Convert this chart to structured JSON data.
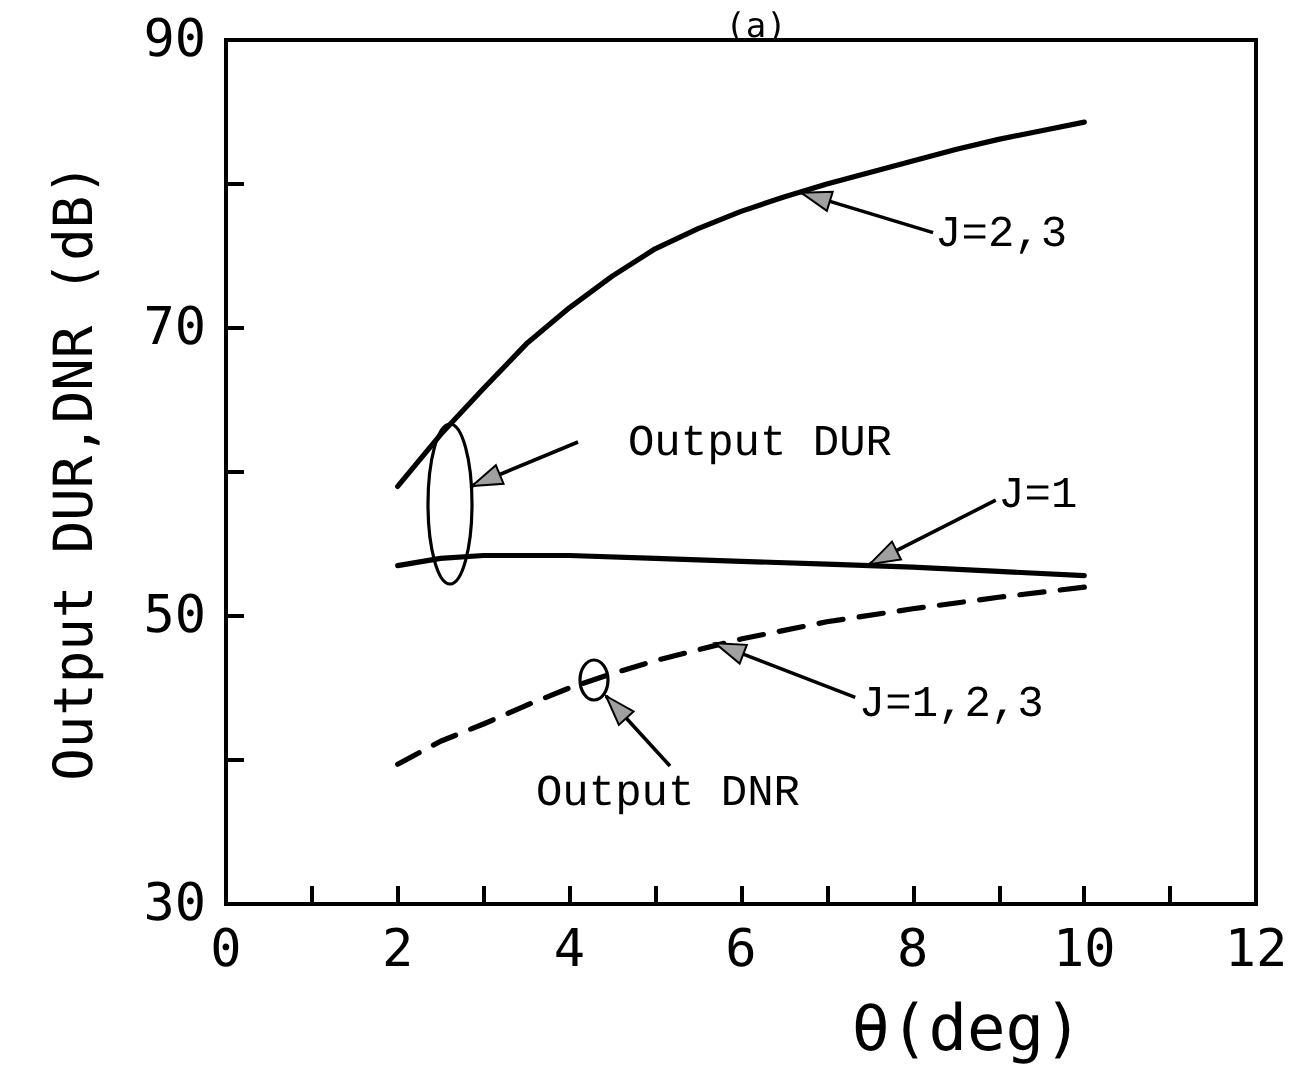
{
  "chart_data": {
    "type": "line",
    "title": "(a)",
    "xlabel": "θ(deg)",
    "ylabel": "Output DUR,DNR (dB)",
    "xlim": [
      0,
      12
    ],
    "xticks": [
      0,
      {
        "value": 1,
        "label": null
      },
      2,
      {
        "value": 3,
        "label": null
      },
      4,
      {
        "value": 5,
        "label": null
      },
      6,
      {
        "value": 7,
        "label": null
      },
      8,
      {
        "value": 9,
        "label": null
      },
      10,
      {
        "value": 11,
        "label": null
      },
      12
    ],
    "ylim": [
      30,
      90
    ],
    "yticks": [
      30,
      {
        "value": 40,
        "label": null
      },
      50,
      {
        "value": 60,
        "label": null
      },
      70,
      {
        "value": 80,
        "label": null
      },
      90
    ],
    "series": [
      {
        "color": "#000000",
        "line_style": "solid",
        "x": [
          2,
          2.5,
          3,
          3.5,
          4,
          4.5,
          5,
          5.5,
          6,
          6.5,
          7,
          7.5,
          8,
          8.5,
          9,
          9.5,
          10
        ],
        "values": [
          59.0,
          62.6,
          65.8,
          68.9,
          71.4,
          73.6,
          75.5,
          76.9,
          78.1,
          79.1,
          80.0,
          80.8,
          81.6,
          82.4,
          83.1,
          83.7,
          84.3
        ]
      },
      {
        "color": "#000000",
        "line_style": "solid",
        "x": [
          2,
          2.5,
          3,
          4,
          5,
          6,
          7,
          8,
          9,
          10
        ],
        "values": [
          53.5,
          54.0,
          54.2,
          54.2,
          54.0,
          53.8,
          53.6,
          53.4,
          53.1,
          52.8
        ]
      },
      {
        "color": "#000000",
        "line_style": "dashed",
        "x": [
          2,
          2.5,
          3,
          3.5,
          4,
          4.5,
          5,
          6,
          7,
          8,
          9,
          10
        ],
        "values": [
          39.7,
          41.3,
          42.5,
          43.8,
          45.0,
          46.0,
          46.9,
          48.4,
          49.6,
          50.5,
          51.3,
          52.0
        ]
      }
    ],
    "annotations": [
      {
        "text": "J=2,3",
        "x": 6.7,
        "y": 79.4
      },
      "Output DUR",
      {
        "text": "J=1",
        "x": 7.5,
        "y": 53.6
      },
      {
        "text": "J=1,2,3",
        "x": 5.7,
        "y": 48.1
      },
      "Output DNR"
    ]
  }
}
